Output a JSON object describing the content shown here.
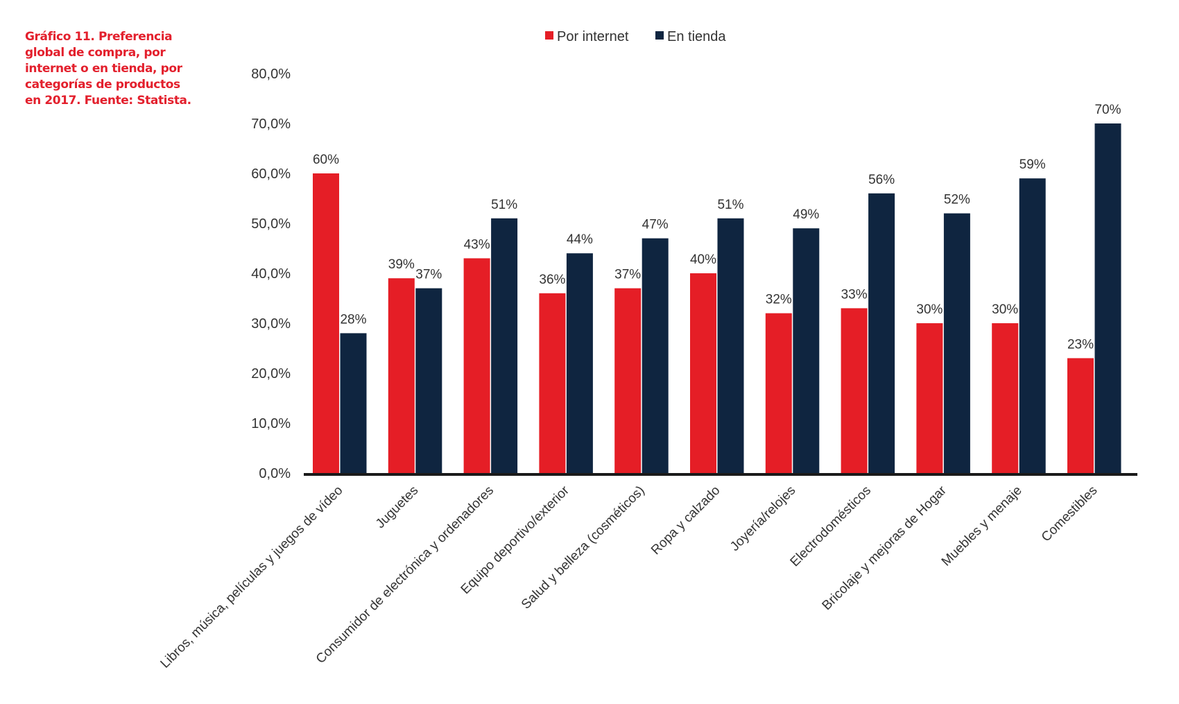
{
  "caption": {
    "lines": [
      "Gráfico 11. Preferencia",
      "global de compra, por",
      "internet o en tienda, por",
      "categorías de productos",
      "en 2017. Fuente: Statista."
    ]
  },
  "colors": {
    "caption": "#e3202d",
    "series_internet": "#e51e26",
    "series_tienda": "#0f2540",
    "axis": "#1a1a1a",
    "text": "#333333"
  },
  "chart_data": {
    "type": "bar",
    "title": "Gráfico 11. Preferencia global de compra, por internet o en tienda, por categorías de productos en 2017. Fuente: Statista.",
    "xlabel": "",
    "ylabel": "",
    "ylim": [
      0,
      80
    ],
    "yticks": [
      0,
      10,
      20,
      30,
      40,
      50,
      60,
      70,
      80
    ],
    "ytick_labels": [
      "0,0%",
      "10,0%",
      "20,0%",
      "30,0%",
      "40,0%",
      "50,0%",
      "60,0%",
      "70,0%",
      "80,0%"
    ],
    "grid": false,
    "legend_position": "top-center",
    "categories": [
      "Libros, música, películas y juegos de vídeo",
      "Juguetes",
      "Consumidor de electrónica y ordenadores",
      "Equipo deportivo/exterior",
      "Salud y belleza (cosméticos)",
      "Ropa y calzado",
      "Joyería/relojes",
      "Electrodomésticos",
      "Bricolaje y mejoras de Hogar",
      "Muebles y menaje",
      "Comestibles"
    ],
    "series": [
      {
        "name": "Por internet",
        "values": [
          60,
          39,
          43,
          36,
          37,
          40,
          32,
          33,
          30,
          30,
          23
        ],
        "labels": [
          "60%",
          "39%",
          "43%",
          "36%",
          "37%",
          "40%",
          "32%",
          "33%",
          "30%",
          "30%",
          "23%"
        ]
      },
      {
        "name": "En tienda",
        "values": [
          28,
          37,
          51,
          44,
          47,
          51,
          49,
          56,
          52,
          59,
          70
        ],
        "labels": [
          "28%",
          "37%",
          "51%",
          "44%",
          "47%",
          "51%",
          "49%",
          "56%",
          "52%",
          "59%",
          "70%"
        ]
      }
    ]
  }
}
